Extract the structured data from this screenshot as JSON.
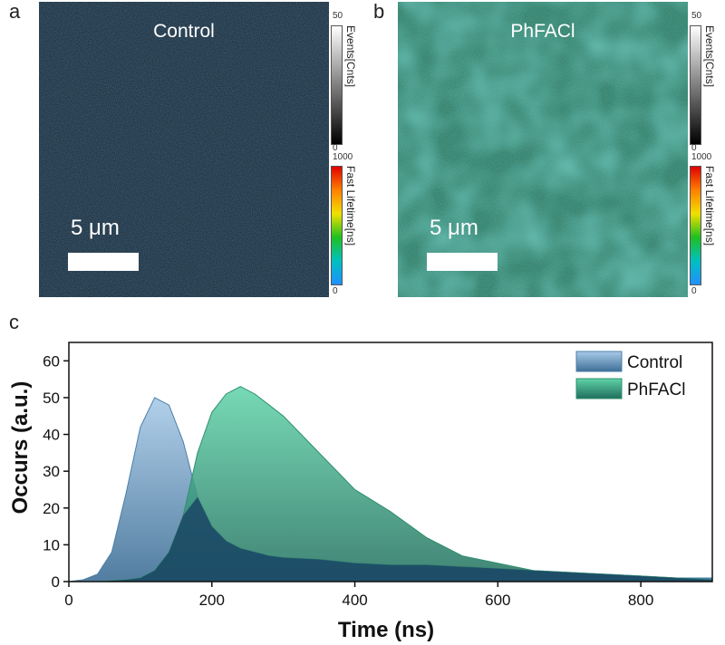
{
  "panels": {
    "a": {
      "letter": "a",
      "title": "Control",
      "scale": "5 μm",
      "events_label": "Events[Cnts]",
      "events_max": "50",
      "events_min": "0",
      "lifetime_label": "Fast Lifetime[ns]",
      "lifetime_max": "1000",
      "lifetime_min": "0"
    },
    "b": {
      "letter": "b",
      "title": "PhFACl",
      "scale": "5 μm",
      "events_label": "Events[Cnts]",
      "events_max": "50",
      "events_min": "0",
      "lifetime_label": "Fast Lifetime[ns]",
      "lifetime_max": "1000",
      "lifetime_min": "0"
    },
    "c": {
      "letter": "c"
    }
  },
  "colors": {
    "control_fill": "#a9cbe8",
    "phfacl_fill": "#5fd3a8",
    "overlap": "#1d4a67"
  },
  "chart_data": {
    "type": "area",
    "xlabel": "Time (ns)",
    "ylabel": "Occurs (a.u.)",
    "xlim": [
      0,
      900
    ],
    "ylim": [
      0,
      65
    ],
    "xticks": [
      0,
      200,
      400,
      600,
      800
    ],
    "yticks": [
      0,
      10,
      20,
      30,
      40,
      50,
      60
    ],
    "legend_position": "top-right",
    "series": [
      {
        "name": "Control",
        "x": [
          0,
          20,
          40,
          60,
          80,
          100,
          120,
          140,
          160,
          180,
          200,
          220,
          240,
          260,
          280,
          300,
          350,
          400,
          450,
          500,
          550,
          600,
          650,
          700,
          750,
          800,
          850,
          900
        ],
        "y": [
          0,
          0.5,
          2,
          8,
          24,
          42,
          50,
          48,
          38,
          23,
          15,
          11,
          9,
          8,
          7,
          6.5,
          6,
          5,
          4.5,
          4.5,
          4,
          3.5,
          3,
          2.5,
          2,
          1.5,
          1,
          1
        ]
      },
      {
        "name": "PhFACl",
        "x": [
          0,
          40,
          80,
          100,
          120,
          140,
          160,
          180,
          200,
          220,
          240,
          260,
          280,
          300,
          350,
          400,
          450,
          500,
          550,
          600,
          650,
          700,
          750,
          800,
          850,
          900
        ],
        "y": [
          0,
          0,
          0.5,
          1,
          3,
          8,
          18,
          35,
          46,
          51,
          53,
          51,
          48,
          45,
          35,
          25,
          19,
          12,
          7,
          5,
          3,
          2.5,
          2,
          1.5,
          1,
          0.5
        ]
      }
    ]
  }
}
